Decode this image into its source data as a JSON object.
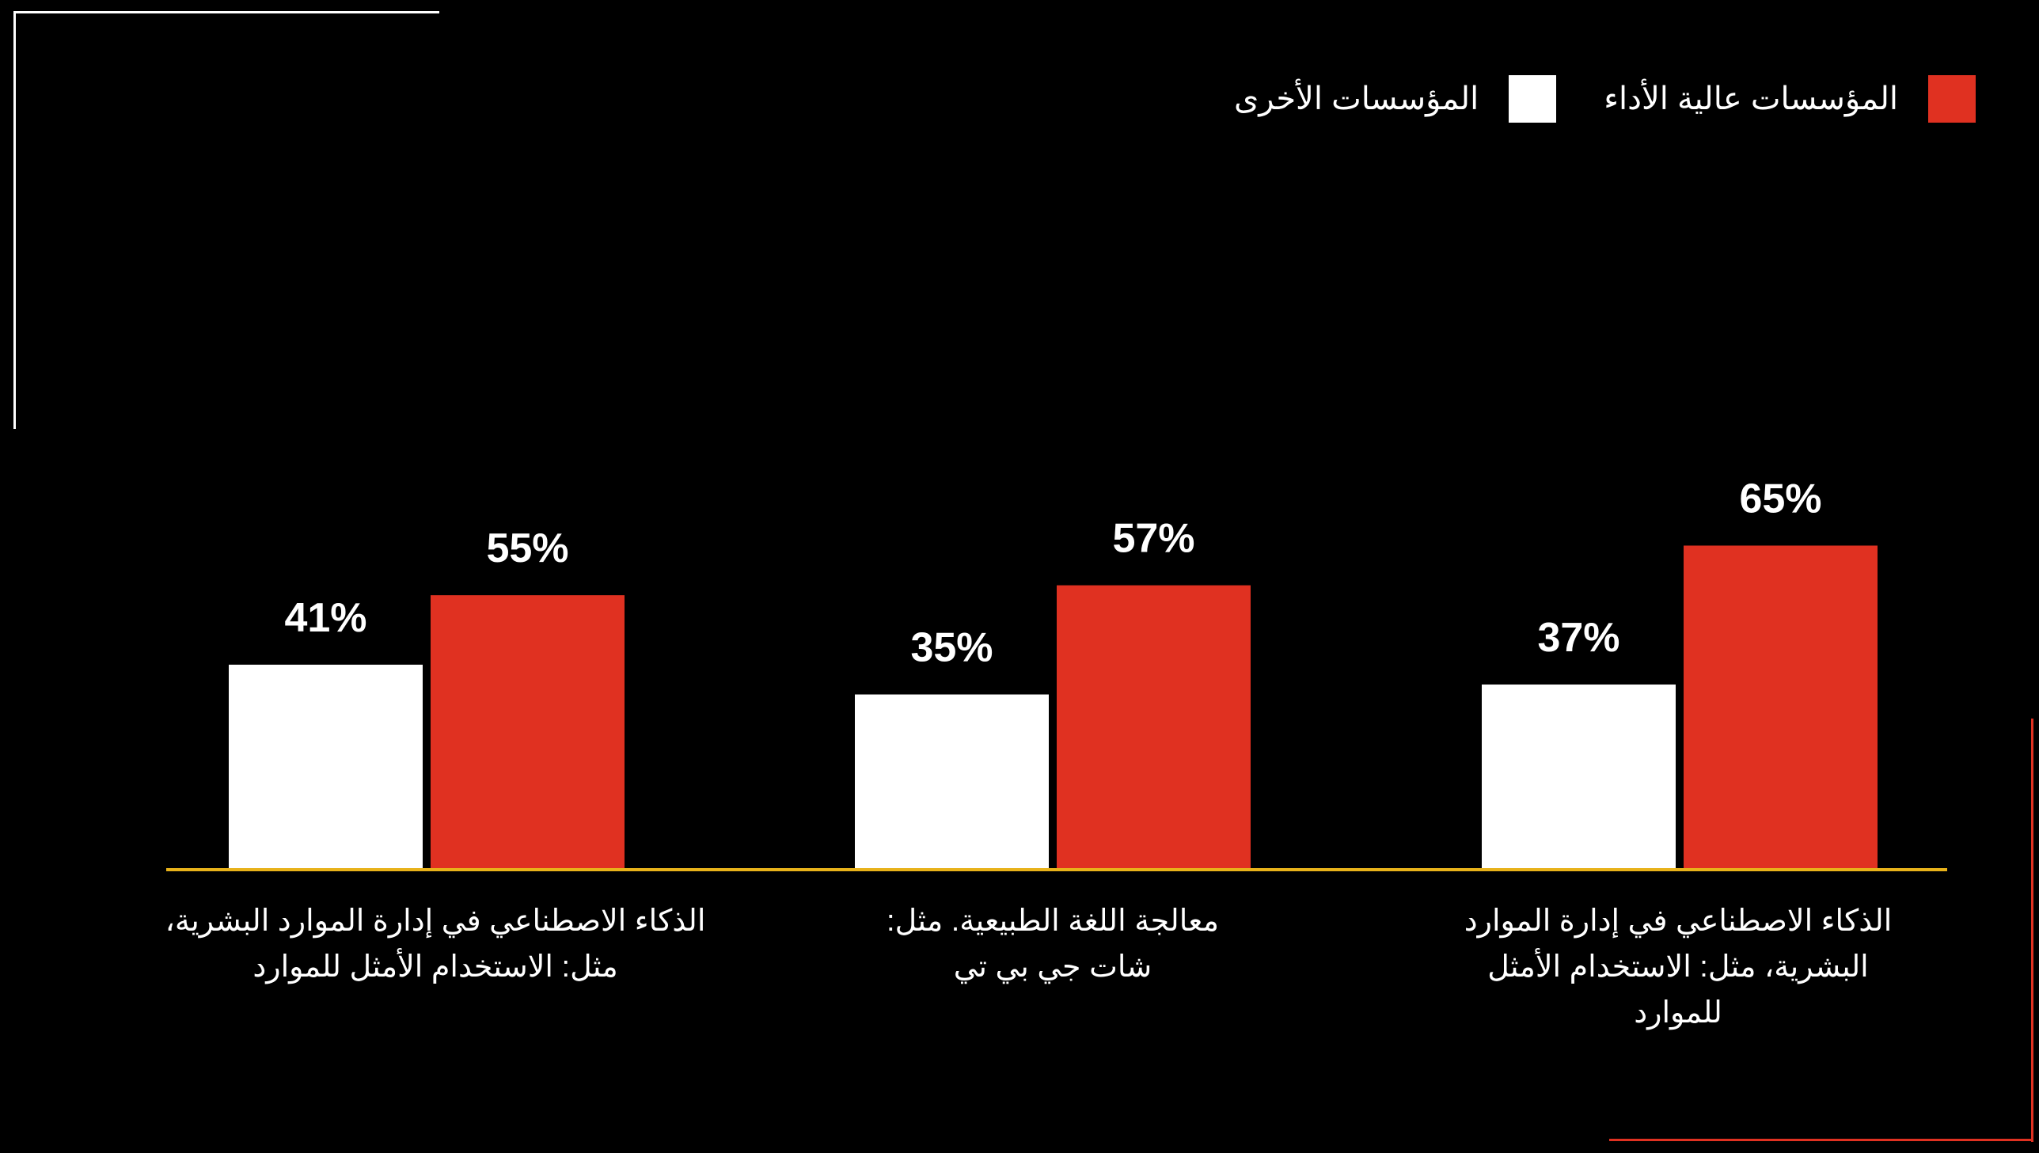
{
  "legend": {
    "items": [
      {
        "label": "المؤسسات عالية الأداء",
        "color": "#e03121"
      },
      {
        "label": "المؤسسات الأخرى",
        "color": "#ffffff"
      }
    ]
  },
  "colors": {
    "background": "#000000",
    "axis": "#e8b21a",
    "frame_white": "#ffffff",
    "frame_red": "#e03121"
  },
  "chart_data": {
    "type": "bar",
    "categories": [
      "الذكاء الاصطناعي في إدارة الموارد البشرية، مثل: الاستخدام الأمثل للموارد",
      "معالجة اللغة الطبيعية. مثل: شات جي بي تي",
      "الذكاء الاصطناعي في إدارة الموارد البشرية، مثل: الاستخدام الأمثل للموارد"
    ],
    "category_lines": [
      [
        "الذكاء الاصطناعي في إدارة الموارد البشرية،",
        "مثل: الاستخدام الأمثل للموارد"
      ],
      [
        "معالجة اللغة الطبيعية. مثل:",
        "شات جي بي تي"
      ],
      [
        "الذكاء الاصطناعي في إدارة الموارد",
        "البشرية، مثل: الاستخدام الأمثل",
        "للموارد"
      ]
    ],
    "series": [
      {
        "name": "المؤسسات الأخرى",
        "values": [
          41,
          35,
          37
        ],
        "labels": [
          "41%",
          "35%",
          "37%"
        ],
        "color": "#ffffff"
      },
      {
        "name": "المؤسسات عالية الأداء",
        "values": [
          55,
          57,
          65
        ],
        "labels": [
          "55%",
          "57%",
          "65%"
        ],
        "color": "#e03121"
      }
    ],
    "ylim": [
      0,
      100
    ],
    "grid": false,
    "legend_position": "top-right"
  }
}
